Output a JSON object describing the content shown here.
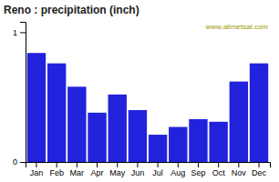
{
  "chart_data": {
    "type": "bar",
    "title": "Reno : precipitation (inch)",
    "categories": [
      "Jan",
      "Feb",
      "Mar",
      "Apr",
      "May",
      "Jun",
      "Jul",
      "Aug",
      "Sep",
      "Oct",
      "Nov",
      "Dec"
    ],
    "values": [
      0.84,
      0.76,
      0.58,
      0.38,
      0.52,
      0.4,
      0.21,
      0.27,
      0.33,
      0.31,
      0.62,
      0.76
    ],
    "color": "#2222dd",
    "ylim": [
      0,
      1.08
    ],
    "yticks": [
      0,
      1
    ],
    "grid": false,
    "annotations": [
      "www.allmetsat.com"
    ]
  }
}
